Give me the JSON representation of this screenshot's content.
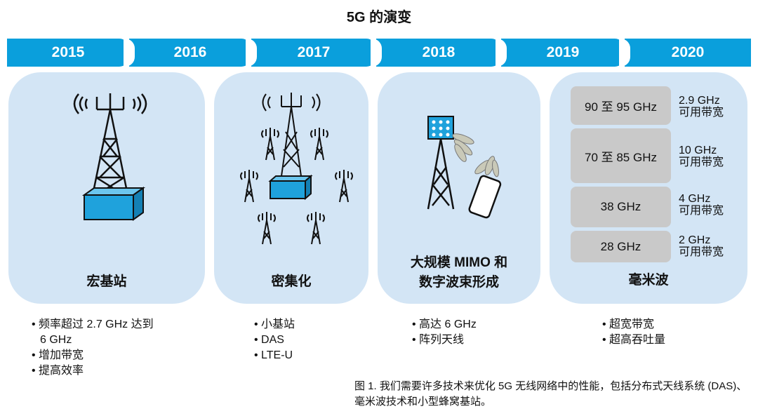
{
  "title": "5G 的演变",
  "timeline": [
    "2015",
    "2016",
    "2017",
    "2018",
    "2019",
    "2020"
  ],
  "panels": [
    {
      "label": "宏基站",
      "icon": "macro-tower-icon",
      "bullets": [
        "频率超过 2.7 GHz 达到",
        "6 GHz",
        "增加带宽",
        "提高效率"
      ]
    },
    {
      "label": "密集化",
      "icon": "densified-towers-icon",
      "bullets": [
        "小基站",
        "DAS",
        "LTE-U"
      ]
    },
    {
      "label_lines": [
        "大规模 MIMO 和",
        "数字波束形成"
      ],
      "icon": "mimo-antenna-phone-icon",
      "bullets": [
        "高达 6 GHz",
        "阵列天线"
      ]
    },
    {
      "label": "毫米波",
      "bands": [
        {
          "freq": "90 至 95 GHz",
          "bw": "2.9 GHz",
          "bw_label": "可用带宽"
        },
        {
          "freq": "70 至 85 GHz",
          "bw": "10 GHz",
          "bw_label": "可用带宽"
        },
        {
          "freq": "38 GHz",
          "bw": "4 GHz",
          "bw_label": "可用带宽"
        },
        {
          "freq": "28 GHz",
          "bw": "2 GHz",
          "bw_label": "可用带宽"
        }
      ],
      "bullets": [
        "超宽带宽",
        "超高吞吐量"
      ]
    }
  ],
  "caption": "图 1. 我们需要许多技术来优化 5G 无线网络中的性能，包括分布式天线系统 (DAS)、毫米波技术和小型蜂窝基站。",
  "colors": {
    "timeline": "#0a9fdc",
    "panel": "#d3e5f5",
    "band": "#c9c9c9",
    "box": "#1fa2dc"
  }
}
